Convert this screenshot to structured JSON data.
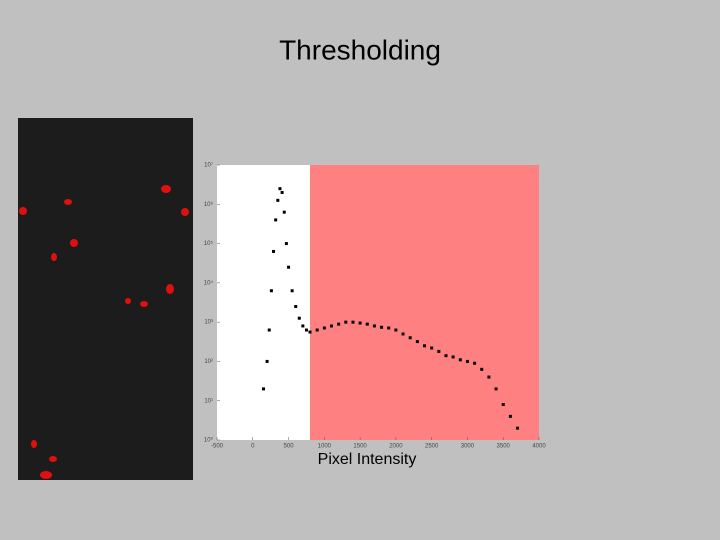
{
  "chart_data": {
    "type": "scatter",
    "title": "Thresholding",
    "xlabel": "Pixel Intensity",
    "log_y": true,
    "threshold_x": 800,
    "threshold_color": "#ff8080",
    "x": [
      150,
      200,
      230,
      260,
      290,
      320,
      350,
      380,
      410,
      440,
      470,
      500,
      550,
      600,
      650,
      700,
      750,
      800,
      900,
      1000,
      1100,
      1200,
      1300,
      1400,
      1500,
      1600,
      1700,
      1800,
      1900,
      2000,
      2100,
      2200,
      2300,
      2400,
      2500,
      2600,
      2700,
      2800,
      2900,
      3000,
      3100,
      3200,
      3300,
      3400,
      3500,
      3600,
      3700
    ],
    "series": [
      {
        "color": "#000000",
        "values": [
          20,
          100,
          630,
          6300,
          63000,
          400000,
          1260000,
          2500000,
          2000000,
          630000,
          100000,
          25000,
          6300,
          2500,
          1260,
          800,
          630,
          560,
          630,
          710,
          800,
          890,
          1000,
          1000,
          950,
          890,
          800,
          740,
          710,
          630,
          500,
          400,
          320,
          250,
          220,
          180,
          140,
          130,
          110,
          100,
          90,
          63,
          40,
          20,
          8,
          4,
          2
        ]
      }
    ],
    "xlim": [
      -500,
      4000
    ],
    "xticks": [
      -500,
      0,
      500,
      1000,
      1500,
      2000,
      2500,
      3000,
      3500,
      4000
    ],
    "ylim": [
      1,
      10000000
    ],
    "yticks": [
      {
        "value": 1,
        "label": "10⁰"
      },
      {
        "value": 10,
        "label": "10¹"
      },
      {
        "value": 100,
        "label": "10²"
      },
      {
        "value": 1000,
        "label": "10³"
      },
      {
        "value": 10000,
        "label": "10⁴"
      },
      {
        "value": 100000,
        "label": "10⁵"
      },
      {
        "value": 1000000,
        "label": "10⁶"
      },
      {
        "value": 10000000,
        "label": "10⁷"
      }
    ]
  }
}
